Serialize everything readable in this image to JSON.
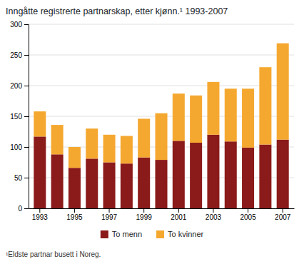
{
  "chart_data": {
    "type": "bar",
    "stacked": true,
    "title": "Inngåtte registrerte partnarskap, etter kjønn.¹ 1993-2007",
    "annotations": [
      "¹Eldste partnar busett i Noreg."
    ],
    "categories": [
      "1993",
      null,
      "1995",
      null,
      "1997",
      null,
      "1999",
      null,
      "2001",
      null,
      "2003",
      null,
      "2005",
      null,
      "2007"
    ],
    "series": [
      {
        "name": "To menn",
        "color": "#8B1A1A",
        "values": [
          117,
          88,
          66,
          81,
          75,
          73,
          83,
          79,
          110,
          107,
          120,
          109,
          99,
          104,
          112
        ]
      },
      {
        "name": "To kvinner",
        "color": "#F5A830",
        "values": [
          41,
          48,
          34,
          49,
          45,
          45,
          63,
          76,
          77,
          77,
          86,
          86,
          96,
          126,
          157
        ]
      }
    ],
    "ylim": [
      0,
      300
    ],
    "yticks": [
      0,
      50,
      100,
      150,
      200,
      250,
      300
    ],
    "grid": true,
    "legend": "bottom"
  }
}
